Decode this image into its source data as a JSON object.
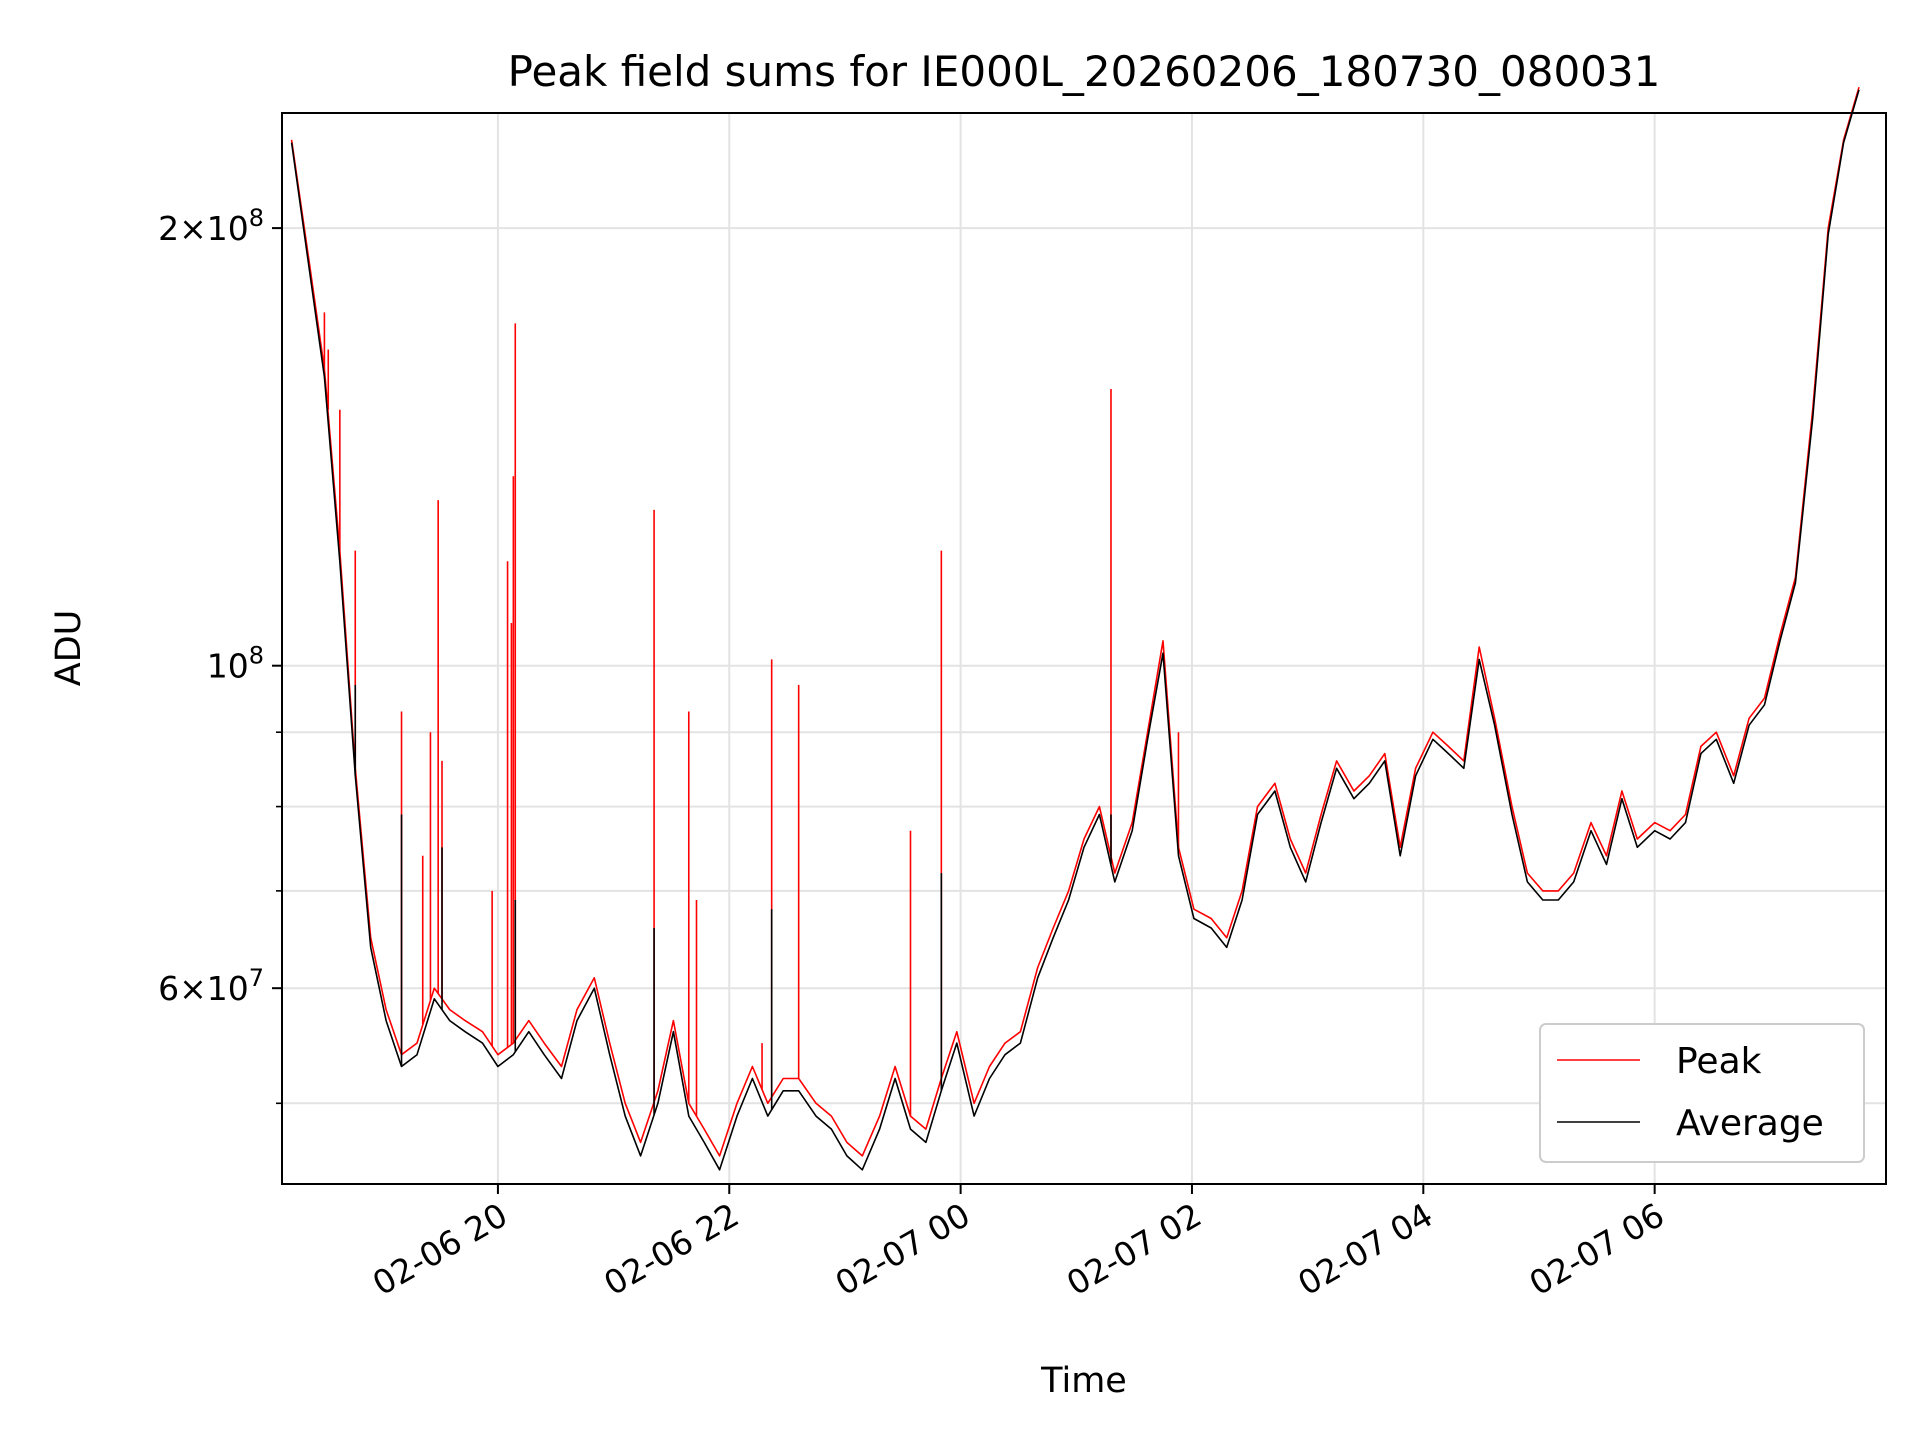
{
  "chart_data": {
    "type": "line",
    "title": "Peak field sums for IE000L_20260206_180730_080031",
    "xlabel": "Time",
    "ylabel": "ADU",
    "yscale": "log",
    "x_unit": "hours",
    "xlim": [
      "02-06 18:08",
      "02-07 08:00"
    ],
    "ylim": [
      44000000,
      240000000
    ],
    "grid": true,
    "legend_position": "lower-right",
    "x_ticks": [
      {
        "value": "02-06 20:00",
        "label": "02-06 20"
      },
      {
        "value": "02-06 22:00",
        "label": "02-06 22"
      },
      {
        "value": "02-07 00:00",
        "label": "02-07 00"
      },
      {
        "value": "02-07 02:00",
        "label": "02-07 02"
      },
      {
        "value": "02-07 04:00",
        "label": "02-07 04"
      },
      {
        "value": "02-07 06:00",
        "label": "02-07 06"
      }
    ],
    "y_ticks": [
      {
        "value": 60000000,
        "base": "6",
        "exp": "7"
      },
      {
        "value": 100000000,
        "base": "",
        "exp": "8"
      },
      {
        "value": 200000000,
        "base": "2",
        "exp": "8"
      }
    ],
    "y_minor_ticks": [
      50000000,
      70000000,
      80000000,
      90000000
    ],
    "colors": {
      "peak": "#ff0000",
      "average": "#000000",
      "grid": "#e3e3e3"
    },
    "series": [
      {
        "name": "Peak",
        "color": "#ff0000",
        "x": [
          "02-06 18:13",
          "02-06 18:22",
          "02-06 18:30",
          "02-06 18:38",
          "02-06 18:46",
          "02-06 18:54",
          "02-06 19:02",
          "02-06 19:10",
          "02-06 19:18",
          "02-06 19:27",
          "02-06 19:35",
          "02-06 19:43",
          "02-06 19:52",
          "02-06 20:00",
          "02-06 20:08",
          "02-06 20:16",
          "02-06 20:24",
          "02-06 20:33",
          "02-06 20:41",
          "02-06 20:50",
          "02-06 20:58",
          "02-06 21:06",
          "02-06 21:14",
          "02-06 21:23",
          "02-06 21:31",
          "02-06 21:39",
          "02-06 21:47",
          "02-06 21:55",
          "02-06 22:04",
          "02-06 22:12",
          "02-06 22:20",
          "02-06 22:28",
          "02-06 22:36",
          "02-06 22:45",
          "02-06 22:53",
          "02-06 23:01",
          "02-06 23:09",
          "02-06 23:18",
          "02-06 23:26",
          "02-06 23:34",
          "02-06 23:42",
          "02-06 23:50",
          "02-06 23:58",
          "02-07 00:07",
          "02-07 00:15",
          "02-07 00:23",
          "02-07 00:31",
          "02-07 00:40",
          "02-07 00:48",
          "02-07 00:56",
          "02-07 01:04",
          "02-07 01:12",
          "02-07 01:20",
          "02-07 01:29",
          "02-07 01:37",
          "02-07 01:45",
          "02-07 01:53",
          "02-07 02:01",
          "02-07 02:10",
          "02-07 02:18",
          "02-07 02:26",
          "02-07 02:34",
          "02-07 02:43",
          "02-07 02:51",
          "02-07 02:59",
          "02-07 03:07",
          "02-07 03:15",
          "02-07 03:24",
          "02-07 03:32",
          "02-07 03:40",
          "02-07 03:48",
          "02-07 03:56",
          "02-07 04:05",
          "02-07 04:13",
          "02-07 04:21",
          "02-07 04:29",
          "02-07 04:37",
          "02-07 04:46",
          "02-07 04:54",
          "02-07 05:02",
          "02-07 05:10",
          "02-07 05:18",
          "02-07 05:27",
          "02-07 05:35",
          "02-07 05:43",
          "02-07 05:51",
          "02-07 06:00",
          "02-07 06:08",
          "02-07 06:16",
          "02-07 06:24",
          "02-07 06:32",
          "02-07 06:41",
          "02-07 06:49",
          "02-07 06:57",
          "02-07 07:05",
          "02-07 07:13",
          "02-07 07:22",
          "02-07 07:30",
          "02-07 07:38",
          "02-07 07:46"
        ],
        "values": [
          230000000,
          190000000,
          160000000,
          120000000,
          85000000,
          65000000,
          58000000,
          54000000,
          55000000,
          60000000,
          58000000,
          57000000,
          56000000,
          54000000,
          55000000,
          57000000,
          55000000,
          53000000,
          58000000,
          61000000,
          55000000,
          50000000,
          47000000,
          51000000,
          57000000,
          50000000,
          48000000,
          46000000,
          50000000,
          53000000,
          50000000,
          52000000,
          52000000,
          50000000,
          49000000,
          47000000,
          46000000,
          49000000,
          53000000,
          49000000,
          48000000,
          52000000,
          56000000,
          50000000,
          53000000,
          55000000,
          56000000,
          62000000,
          66000000,
          70000000,
          76000000,
          80000000,
          72000000,
          78000000,
          90000000,
          104000000,
          75000000,
          68000000,
          67000000,
          65000000,
          70000000,
          80000000,
          83000000,
          76000000,
          72000000,
          79000000,
          86000000,
          82000000,
          84000000,
          87000000,
          75000000,
          85000000,
          90000000,
          88000000,
          86000000,
          103000000,
          92000000,
          80000000,
          72000000,
          70000000,
          70000000,
          72000000,
          78000000,
          74000000,
          82000000,
          76000000,
          78000000,
          77000000,
          79000000,
          88000000,
          90000000,
          84000000,
          92000000,
          95000000,
          105000000,
          115000000,
          150000000,
          200000000,
          230000000,
          250000000
        ],
        "spikes": [
          {
            "x": "02-06 18:30",
            "y": 175000000
          },
          {
            "x": "02-06 18:32",
            "y": 165000000
          },
          {
            "x": "02-06 18:38",
            "y": 150000000
          },
          {
            "x": "02-06 18:46",
            "y": 120000000
          },
          {
            "x": "02-06 19:10",
            "y": 93000000
          },
          {
            "x": "02-06 19:21",
            "y": 74000000
          },
          {
            "x": "02-06 19:25",
            "y": 90000000
          },
          {
            "x": "02-06 19:29",
            "y": 130000000
          },
          {
            "x": "02-06 19:31",
            "y": 86000000
          },
          {
            "x": "02-06 19:57",
            "y": 70000000
          },
          {
            "x": "02-06 20:05",
            "y": 118000000
          },
          {
            "x": "02-06 20:07",
            "y": 107000000
          },
          {
            "x": "02-06 20:08",
            "y": 135000000
          },
          {
            "x": "02-06 20:09",
            "y": 172000000
          },
          {
            "x": "02-06 21:21",
            "y": 128000000
          },
          {
            "x": "02-06 21:39",
            "y": 93000000
          },
          {
            "x": "02-06 21:43",
            "y": 69000000
          },
          {
            "x": "02-06 22:17",
            "y": 55000000
          },
          {
            "x": "02-06 22:22",
            "y": 101000000
          },
          {
            "x": "02-06 22:36",
            "y": 97000000
          },
          {
            "x": "02-06 23:34",
            "y": 77000000
          },
          {
            "x": "02-06 23:50",
            "y": 120000000
          },
          {
            "x": "02-07 01:18",
            "y": 155000000
          },
          {
            "x": "02-07 01:53",
            "y": 90000000
          }
        ]
      },
      {
        "name": "Average",
        "color": "#000000",
        "x_same_as": "Peak",
        "values": [
          229000000,
          188000000,
          158000000,
          118000000,
          84000000,
          64000000,
          57000000,
          53000000,
          54000000,
          59000000,
          57000000,
          56000000,
          55000000,
          53000000,
          54000000,
          56000000,
          54000000,
          52000000,
          57000000,
          60000000,
          54000000,
          49000000,
          46000000,
          50000000,
          56000000,
          49000000,
          47000000,
          45000000,
          49000000,
          52000000,
          49000000,
          51000000,
          51000000,
          49000000,
          48000000,
          46000000,
          45000000,
          48000000,
          52000000,
          48000000,
          47000000,
          51000000,
          55000000,
          49000000,
          52000000,
          54000000,
          55000000,
          61000000,
          65000000,
          69000000,
          75000000,
          79000000,
          71000000,
          77000000,
          89000000,
          102000000,
          74000000,
          67000000,
          66000000,
          64000000,
          69000000,
          79000000,
          82000000,
          75000000,
          71000000,
          78000000,
          85000000,
          81000000,
          83000000,
          86000000,
          74000000,
          84000000,
          89000000,
          87000000,
          85000000,
          101000000,
          91000000,
          79000000,
          71000000,
          69000000,
          69000000,
          71000000,
          77000000,
          73000000,
          81000000,
          75000000,
          77000000,
          76000000,
          78000000,
          87000000,
          89000000,
          83000000,
          91000000,
          94000000,
          104000000,
          114000000,
          148000000,
          198000000,
          229000000,
          249000000
        ],
        "spikes": [
          {
            "x": "02-06 18:46",
            "y": 97000000
          },
          {
            "x": "02-06 19:10",
            "y": 79000000
          },
          {
            "x": "02-06 19:31",
            "y": 75000000
          },
          {
            "x": "02-06 20:09",
            "y": 69000000
          },
          {
            "x": "02-06 21:21",
            "y": 66000000
          },
          {
            "x": "02-06 22:22",
            "y": 68000000
          },
          {
            "x": "02-06 23:50",
            "y": 72000000
          },
          {
            "x": "02-07 01:18",
            "y": 79000000
          }
        ]
      }
    ]
  }
}
